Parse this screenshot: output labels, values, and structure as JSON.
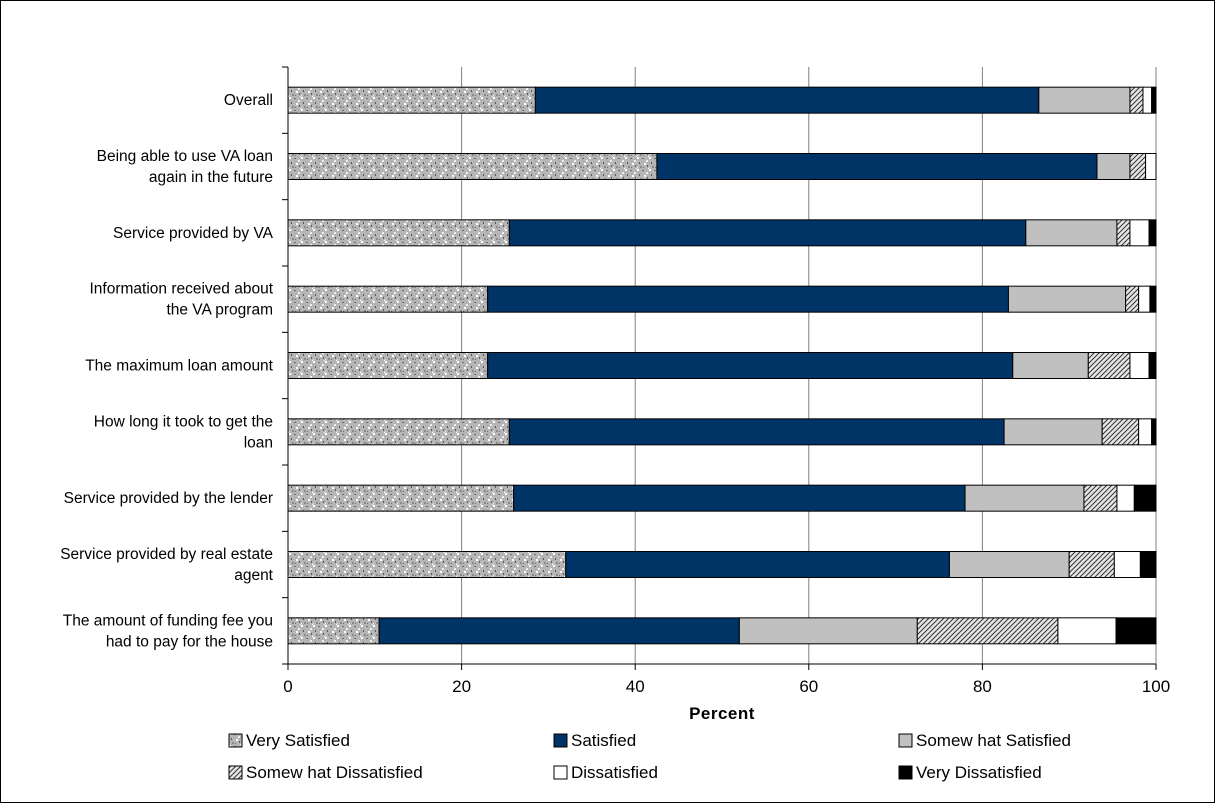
{
  "chart_data": {
    "type": "bar",
    "orientation": "horizontal",
    "stacked": true,
    "title": "",
    "xlabel": "Percent",
    "ylabel": "",
    "xlim": [
      0,
      100
    ],
    "x_ticks": [
      "0",
      "20",
      "40",
      "60",
      "80",
      "100"
    ],
    "grid": true,
    "legend_position": "bottom",
    "categories": [
      [
        "Overall"
      ],
      [
        "Being able to use VA loan",
        "again in the future"
      ],
      [
        "Service provided by VA"
      ],
      [
        "Information received about",
        "the VA  program"
      ],
      [
        "The maximum loan amount"
      ],
      [
        "How long it took to get the",
        "loan"
      ],
      [
        "Service provided by the lender"
      ],
      [
        "Service provided by real estate",
        "agent"
      ],
      [
        "The amount of funding fee you",
        "had to pay for the house"
      ]
    ],
    "series": [
      {
        "name": "Very Satisfied",
        "color": "#b8b8b8",
        "pattern": "speckle",
        "values": [
          28.5,
          42.5,
          25.5,
          23.0,
          23.0,
          25.5,
          26.0,
          32.0,
          10.5
        ]
      },
      {
        "name": "Satisfied",
        "color": "#003366",
        "pattern": "solid",
        "values": [
          58.0,
          50.7,
          59.5,
          60.0,
          60.5,
          57.0,
          52.0,
          44.2,
          41.5
        ]
      },
      {
        "name": "Somew hat Satisfied",
        "color": "#c0c0c0",
        "pattern": "solid",
        "values": [
          10.5,
          3.8,
          10.5,
          13.5,
          8.7,
          11.3,
          13.7,
          13.8,
          20.5
        ]
      },
      {
        "name": "Somew hat Dissatisfied",
        "color": "#bfbfbf",
        "pattern": "hatch",
        "values": [
          1.5,
          1.8,
          1.5,
          1.5,
          4.8,
          4.2,
          3.8,
          5.2,
          16.2
        ]
      },
      {
        "name": "Dissatisfied",
        "color": "#ffffff",
        "pattern": "solid",
        "values": [
          1.0,
          1.2,
          2.2,
          1.3,
          2.2,
          1.5,
          2.0,
          3.0,
          6.7
        ]
      },
      {
        "name": "Very Dissatisfied",
        "color": "#000000",
        "pattern": "solid",
        "values": [
          0.5,
          0.0,
          0.8,
          0.7,
          0.8,
          0.5,
          2.5,
          1.8,
          4.6
        ]
      }
    ]
  }
}
